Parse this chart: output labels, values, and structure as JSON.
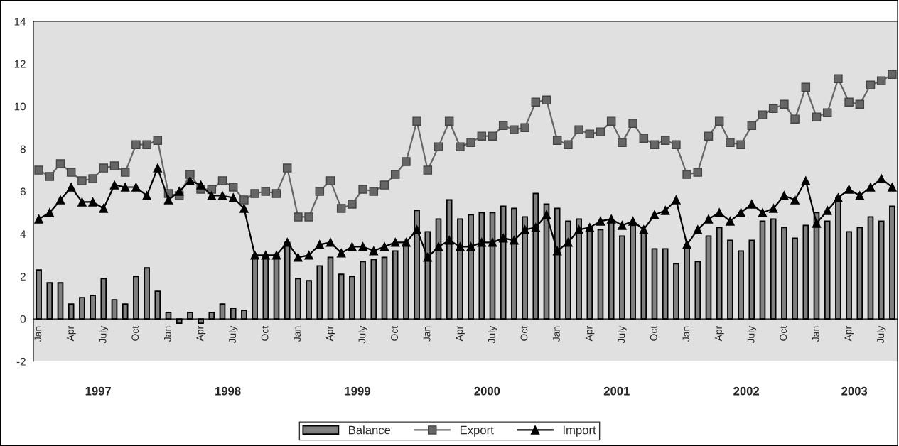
{
  "chart_data": {
    "type": "bar",
    "categories": [
      "Jan",
      null,
      null,
      "Apr",
      null,
      null,
      "July",
      null,
      null,
      "Oct",
      null,
      null,
      "Jan",
      null,
      null,
      "Apr",
      null,
      null,
      "July",
      null,
      null,
      "Oct",
      null,
      null,
      "Jan",
      null,
      null,
      "Apr",
      null,
      null,
      "July",
      null,
      null,
      "Oct",
      null,
      null,
      "Jan",
      null,
      null,
      "Apr",
      null,
      null,
      "July",
      null,
      null,
      "Oct",
      null,
      null,
      "Jan",
      null,
      null,
      "Apr",
      null,
      null,
      "July",
      null,
      null,
      "Oct",
      null,
      null,
      "Jan",
      null,
      null,
      "Apr",
      null,
      null,
      "July",
      null,
      null,
      "Oct",
      null,
      null,
      "Jan",
      null,
      null,
      "Apr",
      null,
      null,
      "July",
      null
    ],
    "series": [
      {
        "name": "Balance",
        "color": "#808080",
        "values": [
          2.3,
          1.7,
          1.7,
          0.7,
          1.0,
          1.1,
          1.9,
          0.9,
          0.7,
          2.0,
          2.4,
          1.3,
          0.3,
          -0.2,
          0.3,
          -0.2,
          0.3,
          0.7,
          0.5,
          0.4,
          3.0,
          3.0,
          3.0,
          3.6,
          1.9,
          1.8,
          2.5,
          2.9,
          2.1,
          2.0,
          2.7,
          2.8,
          2.9,
          3.2,
          3.6,
          5.1,
          4.1,
          4.7,
          5.6,
          4.7,
          4.9,
          5.0,
          5.0,
          5.3,
          5.2,
          4.8,
          5.9,
          5.4,
          5.2,
          4.6,
          4.7,
          4.3,
          4.2,
          4.6,
          3.9,
          4.4,
          4.1,
          3.3,
          3.3,
          2.6,
          3.4,
          2.7,
          3.9,
          4.3,
          3.7,
          3.2,
          3.7,
          4.6,
          4.7,
          4.3,
          3.8,
          4.4,
          5.0,
          4.6,
          5.7,
          4.1,
          4.3,
          4.8,
          4.6,
          5.3
        ]
      },
      {
        "name": "Export",
        "type": "line",
        "marker": "square",
        "color": "#666666",
        "values": [
          7.0,
          6.7,
          7.3,
          6.9,
          6.5,
          6.6,
          7.1,
          7.2,
          6.9,
          8.2,
          8.2,
          8.4,
          5.9,
          5.8,
          6.8,
          6.1,
          6.1,
          6.5,
          6.2,
          5.6,
          5.9,
          6.0,
          5.9,
          7.1,
          4.8,
          4.8,
          6.0,
          6.5,
          5.2,
          5.4,
          6.1,
          6.0,
          6.3,
          6.8,
          7.4,
          9.3,
          7.0,
          8.1,
          9.3,
          8.1,
          8.3,
          8.6,
          8.6,
          9.1,
          8.9,
          9.0,
          10.2,
          10.3,
          8.4,
          8.2,
          8.9,
          8.7,
          8.8,
          9.3,
          8.3,
          9.2,
          8.5,
          8.2,
          8.4,
          8.2,
          6.8,
          6.9,
          8.6,
          9.3,
          8.3,
          8.2,
          9.1,
          9.6,
          9.9,
          10.1,
          9.4,
          10.9,
          9.5,
          9.7,
          11.3,
          10.2,
          10.1,
          11.0,
          11.2,
          11.5
        ]
      },
      {
        "name": "Import",
        "type": "line",
        "marker": "triangle",
        "color": "#000000",
        "values": [
          4.7,
          5.0,
          5.6,
          6.2,
          5.5,
          5.5,
          5.2,
          6.3,
          6.2,
          6.2,
          5.8,
          7.1,
          5.6,
          6.0,
          6.5,
          6.3,
          5.8,
          5.8,
          5.7,
          5.2,
          3.0,
          3.0,
          3.0,
          3.6,
          2.9,
          3.0,
          3.5,
          3.6,
          3.1,
          3.4,
          3.4,
          3.2,
          3.4,
          3.6,
          3.6,
          4.2,
          2.9,
          3.4,
          3.7,
          3.4,
          3.4,
          3.6,
          3.6,
          3.8,
          3.7,
          4.2,
          4.3,
          4.9,
          3.2,
          3.6,
          4.2,
          4.3,
          4.6,
          4.7,
          4.4,
          4.6,
          4.2,
          4.9,
          5.1,
          5.6,
          3.5,
          4.2,
          4.7,
          5.0,
          4.6,
          5.0,
          5.4,
          5.0,
          5.2,
          5.8,
          5.6,
          6.5,
          4.5,
          5.1,
          5.7,
          6.1,
          5.8,
          6.2,
          6.6,
          6.2
        ]
      }
    ],
    "annotations": [
      "1997",
      "1998",
      "1999",
      "2000",
      "2001",
      "2002",
      "2003"
    ],
    "ylim": [
      -2,
      14
    ],
    "yticks": [
      -2,
      0,
      2,
      4,
      6,
      8,
      10,
      12,
      14
    ],
    "grid": false,
    "legend": "bottom"
  }
}
